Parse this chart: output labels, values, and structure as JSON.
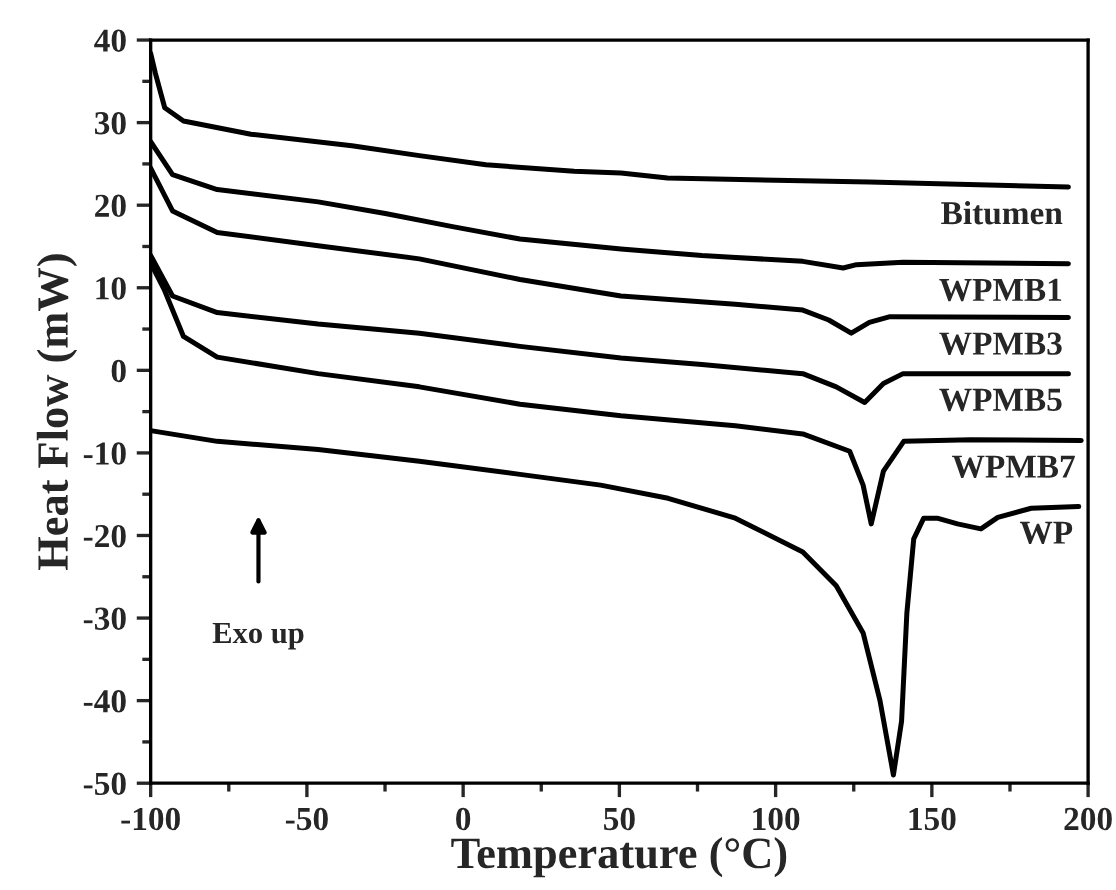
{
  "chart_data": {
    "type": "line",
    "xlabel": "Temperature (°C)",
    "ylabel": "Heat Flow (mW)",
    "xlim": [
      -100,
      200
    ],
    "xticks": [
      -100,
      -50,
      0,
      50,
      100,
      150,
      200
    ],
    "ylim": [
      -50,
      40
    ],
    "yticks": [
      -50,
      -40,
      -30,
      -20,
      -10,
      0,
      10,
      20,
      30,
      40
    ],
    "grid": false,
    "legend": false,
    "line_style": "solid",
    "marker": "none",
    "annotations": [
      "Exo up"
    ],
    "series": [
      {
        "name": "Bitumen",
        "color": "#000000",
        "x": [
          -100,
          -98.5,
          -95.5,
          -89.5,
          -67.9,
          -35.6,
          -14,
          7.3,
          35.5,
          50.5,
          65.4,
          130,
          193.7
        ],
        "values": [
          38.4,
          36,
          31.8,
          30.2,
          28.6,
          27.2,
          26.0,
          24.9,
          24.1,
          23.9,
          23.3,
          22.8,
          22.2
        ]
      },
      {
        "name": "WPMB1",
        "color": "#000000",
        "x": [
          -100,
          -93,
          -78.7,
          -46.4,
          -24.9,
          -3.4,
          18.2,
          50.5,
          76.4,
          108.7,
          121.6,
          125.9,
          140.8,
          193.7
        ],
        "values": [
          27.7,
          23.7,
          21.9,
          20.4,
          19.0,
          17.4,
          15.9,
          14.7,
          13.9,
          13.2,
          12.4,
          12.8,
          13.1,
          12.9
        ]
      },
      {
        "name": "WPMB3",
        "color": "#000000",
        "x": [
          -100,
          -93,
          -78.7,
          -46.4,
          -14,
          18.2,
          50.5,
          87.1,
          108.7,
          117,
          124.2,
          130,
          136.6,
          193.7
        ],
        "values": [
          24.5,
          19.3,
          16.7,
          15.1,
          13.5,
          11.0,
          9.0,
          8.0,
          7.3,
          6.1,
          4.5,
          5.8,
          6.5,
          6.4
        ]
      },
      {
        "name": "WPMB5",
        "color": "#000000",
        "x": [
          -100,
          -93,
          -78.7,
          -46.4,
          -14,
          18.2,
          50.5,
          76.4,
          108.7,
          119.4,
          128.5,
          134.5,
          140.8,
          193.7
        ],
        "values": [
          13.9,
          9.0,
          7.0,
          5.6,
          4.5,
          2.9,
          1.5,
          0.7,
          -0.4,
          -2.0,
          -3.9,
          -1.6,
          -0.4,
          -0.4
        ]
      },
      {
        "name": "WPMB7",
        "color": "#000000",
        "x": [
          -100,
          -95.7,
          -89.5,
          -78.7,
          -46.4,
          -14,
          18.2,
          50.5,
          87.1,
          108.7,
          123.7,
          128,
          130.6,
          134.5,
          141,
          162.5,
          197.8
        ],
        "values": [
          13,
          9.8,
          4.1,
          1.6,
          -0.4,
          -2.0,
          -4.1,
          -5.5,
          -6.7,
          -7.7,
          -9.8,
          -13.9,
          -18.6,
          -12.2,
          -8.6,
          -8.4,
          -8.5
        ]
      },
      {
        "name": "WP",
        "color": "#000000",
        "x": [
          -100,
          -78.7,
          -46.4,
          -14,
          18.2,
          44,
          65.6,
          87.1,
          108.7,
          119.4,
          128,
          133.4,
          137.7,
          140.3,
          142,
          144.2,
          147.4,
          151.7,
          158.2,
          165.7,
          171.1,
          181.8,
          197
        ],
        "values": [
          -7.3,
          -8.6,
          -9.6,
          -11.0,
          -12.6,
          -13.9,
          -15.5,
          -17.9,
          -22.0,
          -26.1,
          -31.8,
          -40.0,
          -49.0,
          -42.5,
          -29.4,
          -20.4,
          -17.9,
          -17.9,
          -18.6,
          -19.2,
          -17.8,
          -16.7,
          -16.5
        ]
      }
    ]
  }
}
